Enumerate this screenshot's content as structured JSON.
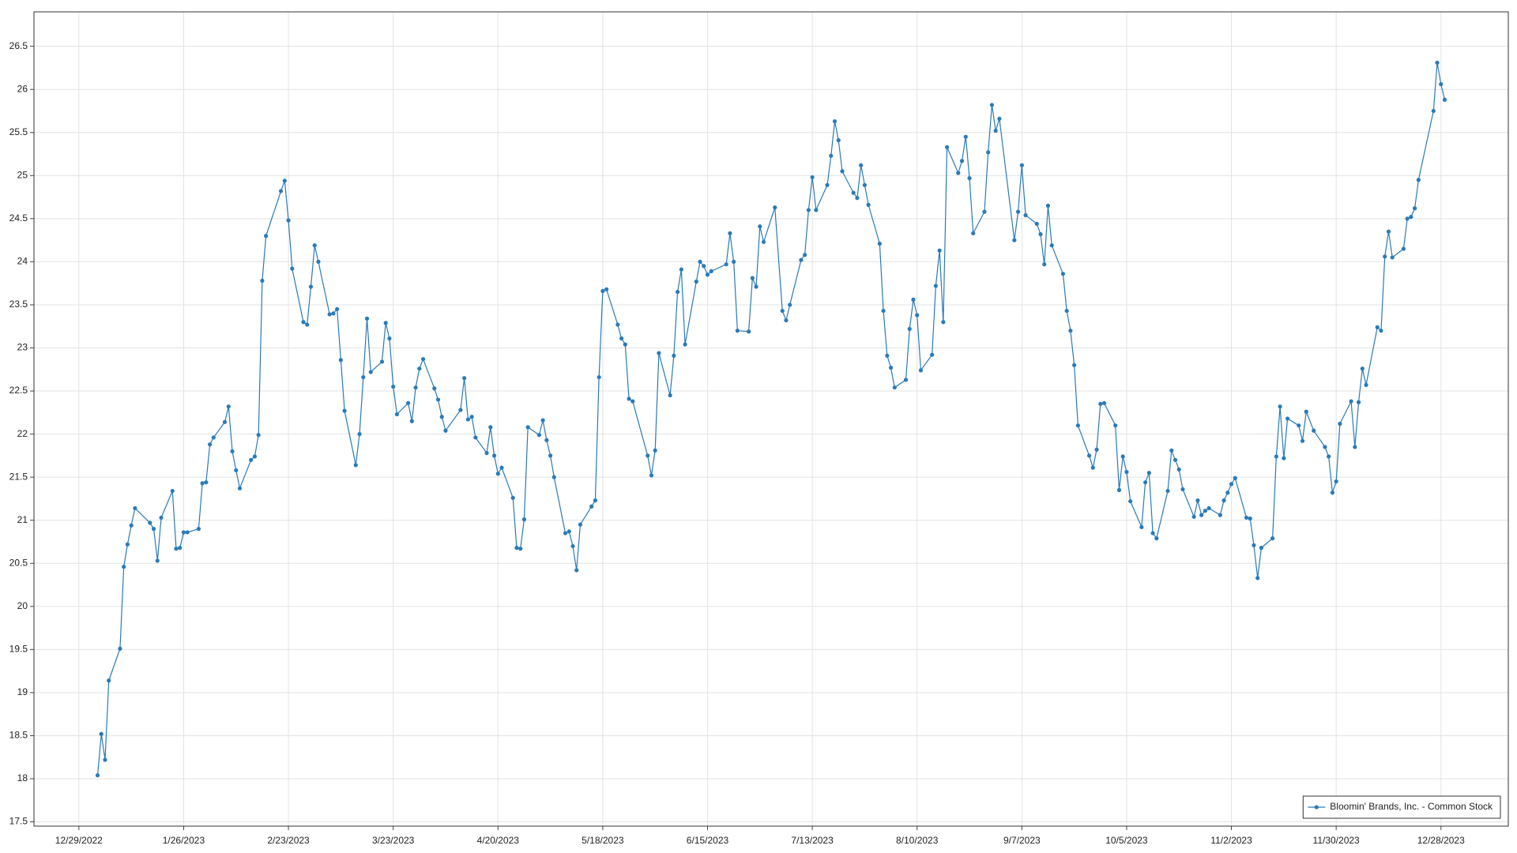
{
  "chart_data": {
    "type": "line",
    "x": [
      "1/3/2023",
      "1/4/2023",
      "1/5/2023",
      "1/6/2023",
      "1/9/2023",
      "1/10/2023",
      "1/11/2023",
      "1/12/2023",
      "1/13/2023",
      "1/17/2023",
      "1/18/2023",
      "1/19/2023",
      "1/20/2023",
      "1/23/2023",
      "1/24/2023",
      "1/25/2023",
      "1/26/2023",
      "1/27/2023",
      "1/30/2023",
      "1/31/2023",
      "2/1/2023",
      "2/2/2023",
      "2/3/2023",
      "2/6/2023",
      "2/7/2023",
      "2/8/2023",
      "2/9/2023",
      "2/10/2023",
      "2/13/2023",
      "2/14/2023",
      "2/15/2023",
      "2/16/2023",
      "2/17/2023",
      "2/21/2023",
      "2/22/2023",
      "2/23/2023",
      "2/24/2023",
      "2/27/2023",
      "2/28/2023",
      "3/1/2023",
      "3/2/2023",
      "3/3/2023",
      "3/6/2023",
      "3/7/2023",
      "3/8/2023",
      "3/9/2023",
      "3/10/2023",
      "3/13/2023",
      "3/14/2023",
      "3/15/2023",
      "3/16/2023",
      "3/17/2023",
      "3/20/2023",
      "3/21/2023",
      "3/22/2023",
      "3/23/2023",
      "3/24/2023",
      "3/27/2023",
      "3/28/2023",
      "3/29/2023",
      "3/30/2023",
      "3/31/2023",
      "4/3/2023",
      "4/4/2023",
      "4/5/2023",
      "4/6/2023",
      "4/10/2023",
      "4/11/2023",
      "4/12/2023",
      "4/13/2023",
      "4/14/2023",
      "4/17/2023",
      "4/18/2023",
      "4/19/2023",
      "4/20/2023",
      "4/21/2023",
      "4/24/2023",
      "4/25/2023",
      "4/26/2023",
      "4/27/2023",
      "4/28/2023",
      "5/1/2023",
      "5/2/2023",
      "5/3/2023",
      "5/4/2023",
      "5/5/2023",
      "5/8/2023",
      "5/9/2023",
      "5/10/2023",
      "5/11/2023",
      "5/12/2023",
      "5/15/2023",
      "5/16/2023",
      "5/17/2023",
      "5/18/2023",
      "5/19/2023",
      "5/22/2023",
      "5/23/2023",
      "5/24/2023",
      "5/25/2023",
      "5/26/2023",
      "5/30/2023",
      "5/31/2023",
      "6/1/2023",
      "6/2/2023",
      "6/5/2023",
      "6/6/2023",
      "6/7/2023",
      "6/8/2023",
      "6/9/2023",
      "6/12/2023",
      "6/13/2023",
      "6/14/2023",
      "6/15/2023",
      "6/16/2023",
      "6/20/2023",
      "6/21/2023",
      "6/22/2023",
      "6/23/2023",
      "6/26/2023",
      "6/27/2023",
      "6/28/2023",
      "6/29/2023",
      "6/30/2023",
      "7/3/2023",
      "7/5/2023",
      "7/6/2023",
      "7/7/2023",
      "7/10/2023",
      "7/11/2023",
      "7/12/2023",
      "7/13/2023",
      "7/14/2023",
      "7/17/2023",
      "7/18/2023",
      "7/19/2023",
      "7/20/2023",
      "7/21/2023",
      "7/24/2023",
      "7/25/2023",
      "7/26/2023",
      "7/27/2023",
      "7/28/2023",
      "7/31/2023",
      "8/1/2023",
      "8/2/2023",
      "8/3/2023",
      "8/4/2023",
      "8/7/2023",
      "8/8/2023",
      "8/9/2023",
      "8/10/2023",
      "8/11/2023",
      "8/14/2023",
      "8/15/2023",
      "8/16/2023",
      "8/17/2023",
      "8/18/2023",
      "8/21/2023",
      "8/22/2023",
      "8/23/2023",
      "8/24/2023",
      "8/25/2023",
      "8/28/2023",
      "8/29/2023",
      "8/30/2023",
      "8/31/2023",
      "9/1/2023",
      "9/5/2023",
      "9/6/2023",
      "9/7/2023",
      "9/8/2023",
      "9/11/2023",
      "9/12/2023",
      "9/13/2023",
      "9/14/2023",
      "9/15/2023",
      "9/18/2023",
      "9/19/2023",
      "9/20/2023",
      "9/21/2023",
      "9/22/2023",
      "9/25/2023",
      "9/26/2023",
      "9/27/2023",
      "9/28/2023",
      "9/29/2023",
      "10/2/2023",
      "10/3/2023",
      "10/4/2023",
      "10/5/2023",
      "10/6/2023",
      "10/9/2023",
      "10/10/2023",
      "10/11/2023",
      "10/12/2023",
      "10/13/2023",
      "10/16/2023",
      "10/17/2023",
      "10/18/2023",
      "10/19/2023",
      "10/20/2023",
      "10/23/2023",
      "10/24/2023",
      "10/25/2023",
      "10/26/2023",
      "10/27/2023",
      "10/30/2023",
      "10/31/2023",
      "11/1/2023",
      "11/2/2023",
      "11/3/2023",
      "11/6/2023",
      "11/7/2023",
      "11/8/2023",
      "11/9/2023",
      "11/10/2023",
      "11/13/2023",
      "11/14/2023",
      "11/15/2023",
      "11/16/2023",
      "11/17/2023",
      "11/20/2023",
      "11/21/2023",
      "11/22/2023",
      "11/24/2023",
      "11/27/2023",
      "11/28/2023",
      "11/29/2023",
      "11/30/2023",
      "12/1/2023",
      "12/4/2023",
      "12/5/2023",
      "12/6/2023",
      "12/7/2023",
      "12/8/2023",
      "12/11/2023",
      "12/12/2023",
      "12/13/2023",
      "12/14/2023",
      "12/15/2023",
      "12/18/2023",
      "12/19/2023",
      "12/20/2023",
      "12/21/2023",
      "12/22/2023",
      "12/26/2023",
      "12/27/2023",
      "12/28/2023",
      "12/29/2023"
    ],
    "series": [
      {
        "name": "Bloomin' Brands, Inc. - Common Stock",
        "color": "#2a7ab8",
        "values": [
          18.04,
          18.52,
          18.22,
          19.14,
          19.51,
          20.46,
          20.72,
          20.94,
          21.14,
          20.97,
          20.9,
          20.53,
          21.03,
          21.34,
          20.67,
          20.68,
          20.86,
          20.86,
          20.9,
          21.43,
          21.44,
          21.88,
          21.96,
          22.14,
          22.32,
          21.8,
          21.58,
          21.37,
          21.7,
          21.74,
          21.99,
          23.78,
          24.3,
          24.82,
          24.94,
          24.48,
          23.92,
          23.3,
          23.27,
          23.71,
          24.19,
          24.0,
          23.39,
          23.4,
          23.45,
          22.86,
          22.27,
          21.64,
          22.0,
          22.66,
          23.34,
          22.72,
          22.84,
          23.29,
          23.11,
          22.55,
          22.23,
          22.36,
          22.15,
          22.54,
          22.76,
          22.87,
          22.53,
          22.4,
          22.2,
          22.04,
          22.28,
          22.65,
          22.17,
          22.2,
          21.96,
          21.78,
          22.08,
          21.75,
          21.54,
          21.61,
          21.26,
          20.68,
          20.67,
          21.01,
          22.08,
          21.99,
          22.16,
          21.93,
          21.75,
          21.5,
          20.85,
          20.87,
          20.7,
          20.42,
          20.95,
          21.16,
          21.23,
          22.66,
          23.66,
          23.68,
          23.27,
          23.11,
          23.04,
          22.41,
          22.38,
          21.75,
          21.52,
          21.81,
          22.94,
          22.45,
          22.91,
          23.65,
          23.91,
          23.04,
          23.77,
          24.0,
          23.95,
          23.85,
          23.89,
          23.97,
          24.33,
          24.0,
          23.2,
          23.19,
          23.81,
          23.71,
          24.41,
          24.23,
          24.63,
          23.43,
          23.32,
          23.5,
          24.02,
          24.08,
          24.6,
          24.98,
          24.6,
          24.89,
          25.23,
          25.63,
          25.41,
          25.05,
          24.8,
          24.74,
          25.12,
          24.89,
          24.66,
          24.21,
          23.43,
          22.91,
          22.77,
          22.54,
          22.63,
          23.22,
          23.56,
          23.38,
          22.74,
          22.92,
          23.72,
          24.13,
          23.3,
          25.33,
          25.03,
          25.17,
          25.45,
          24.97,
          24.33,
          24.58,
          25.27,
          25.82,
          25.52,
          25.66,
          24.25,
          24.58,
          25.12,
          24.54,
          24.44,
          24.32,
          23.97,
          24.65,
          24.19,
          23.86,
          23.43,
          23.2,
          22.8,
          22.1,
          21.75,
          21.61,
          21.82,
          22.35,
          22.36,
          22.1,
          21.35,
          21.74,
          21.56,
          21.22,
          20.92,
          21.44,
          21.55,
          20.85,
          20.79,
          21.34,
          21.81,
          21.7,
          21.59,
          21.36,
          21.04,
          21.23,
          21.06,
          21.11,
          21.14,
          21.06,
          21.23,
          21.32,
          21.42,
          21.49,
          21.03,
          21.02,
          20.71,
          20.33,
          20.68,
          20.79,
          21.74,
          22.32,
          21.72,
          22.18,
          22.1,
          21.92,
          22.26,
          22.04,
          21.85,
          21.74,
          21.32,
          21.45,
          22.12,
          22.38,
          21.85,
          22.37,
          22.76,
          22.57,
          23.24,
          23.2,
          24.06,
          24.35,
          24.05,
          24.15,
          24.5,
          24.52,
          24.62,
          24.95,
          25.75,
          26.31,
          26.06,
          25.88
        ]
      }
    ],
    "xlim": [
      "12/17/2022",
      "1/15/2024"
    ],
    "xticks": [
      "12/29/2022",
      "1/26/2023",
      "2/23/2023",
      "3/23/2023",
      "4/20/2023",
      "5/18/2023",
      "6/15/2023",
      "7/13/2023",
      "8/10/2023",
      "9/7/2023",
      "10/5/2023",
      "11/2/2023",
      "11/30/2023",
      "12/28/2023"
    ],
    "ylim": [
      17.45,
      26.9
    ],
    "yticks": [
      17.5,
      18,
      18.5,
      19,
      19.5,
      20,
      20.5,
      21,
      21.5,
      22,
      22.5,
      23,
      23.5,
      24,
      24.5,
      25,
      25.5,
      26,
      26.5
    ],
    "grid": true,
    "legend": "lower right"
  }
}
